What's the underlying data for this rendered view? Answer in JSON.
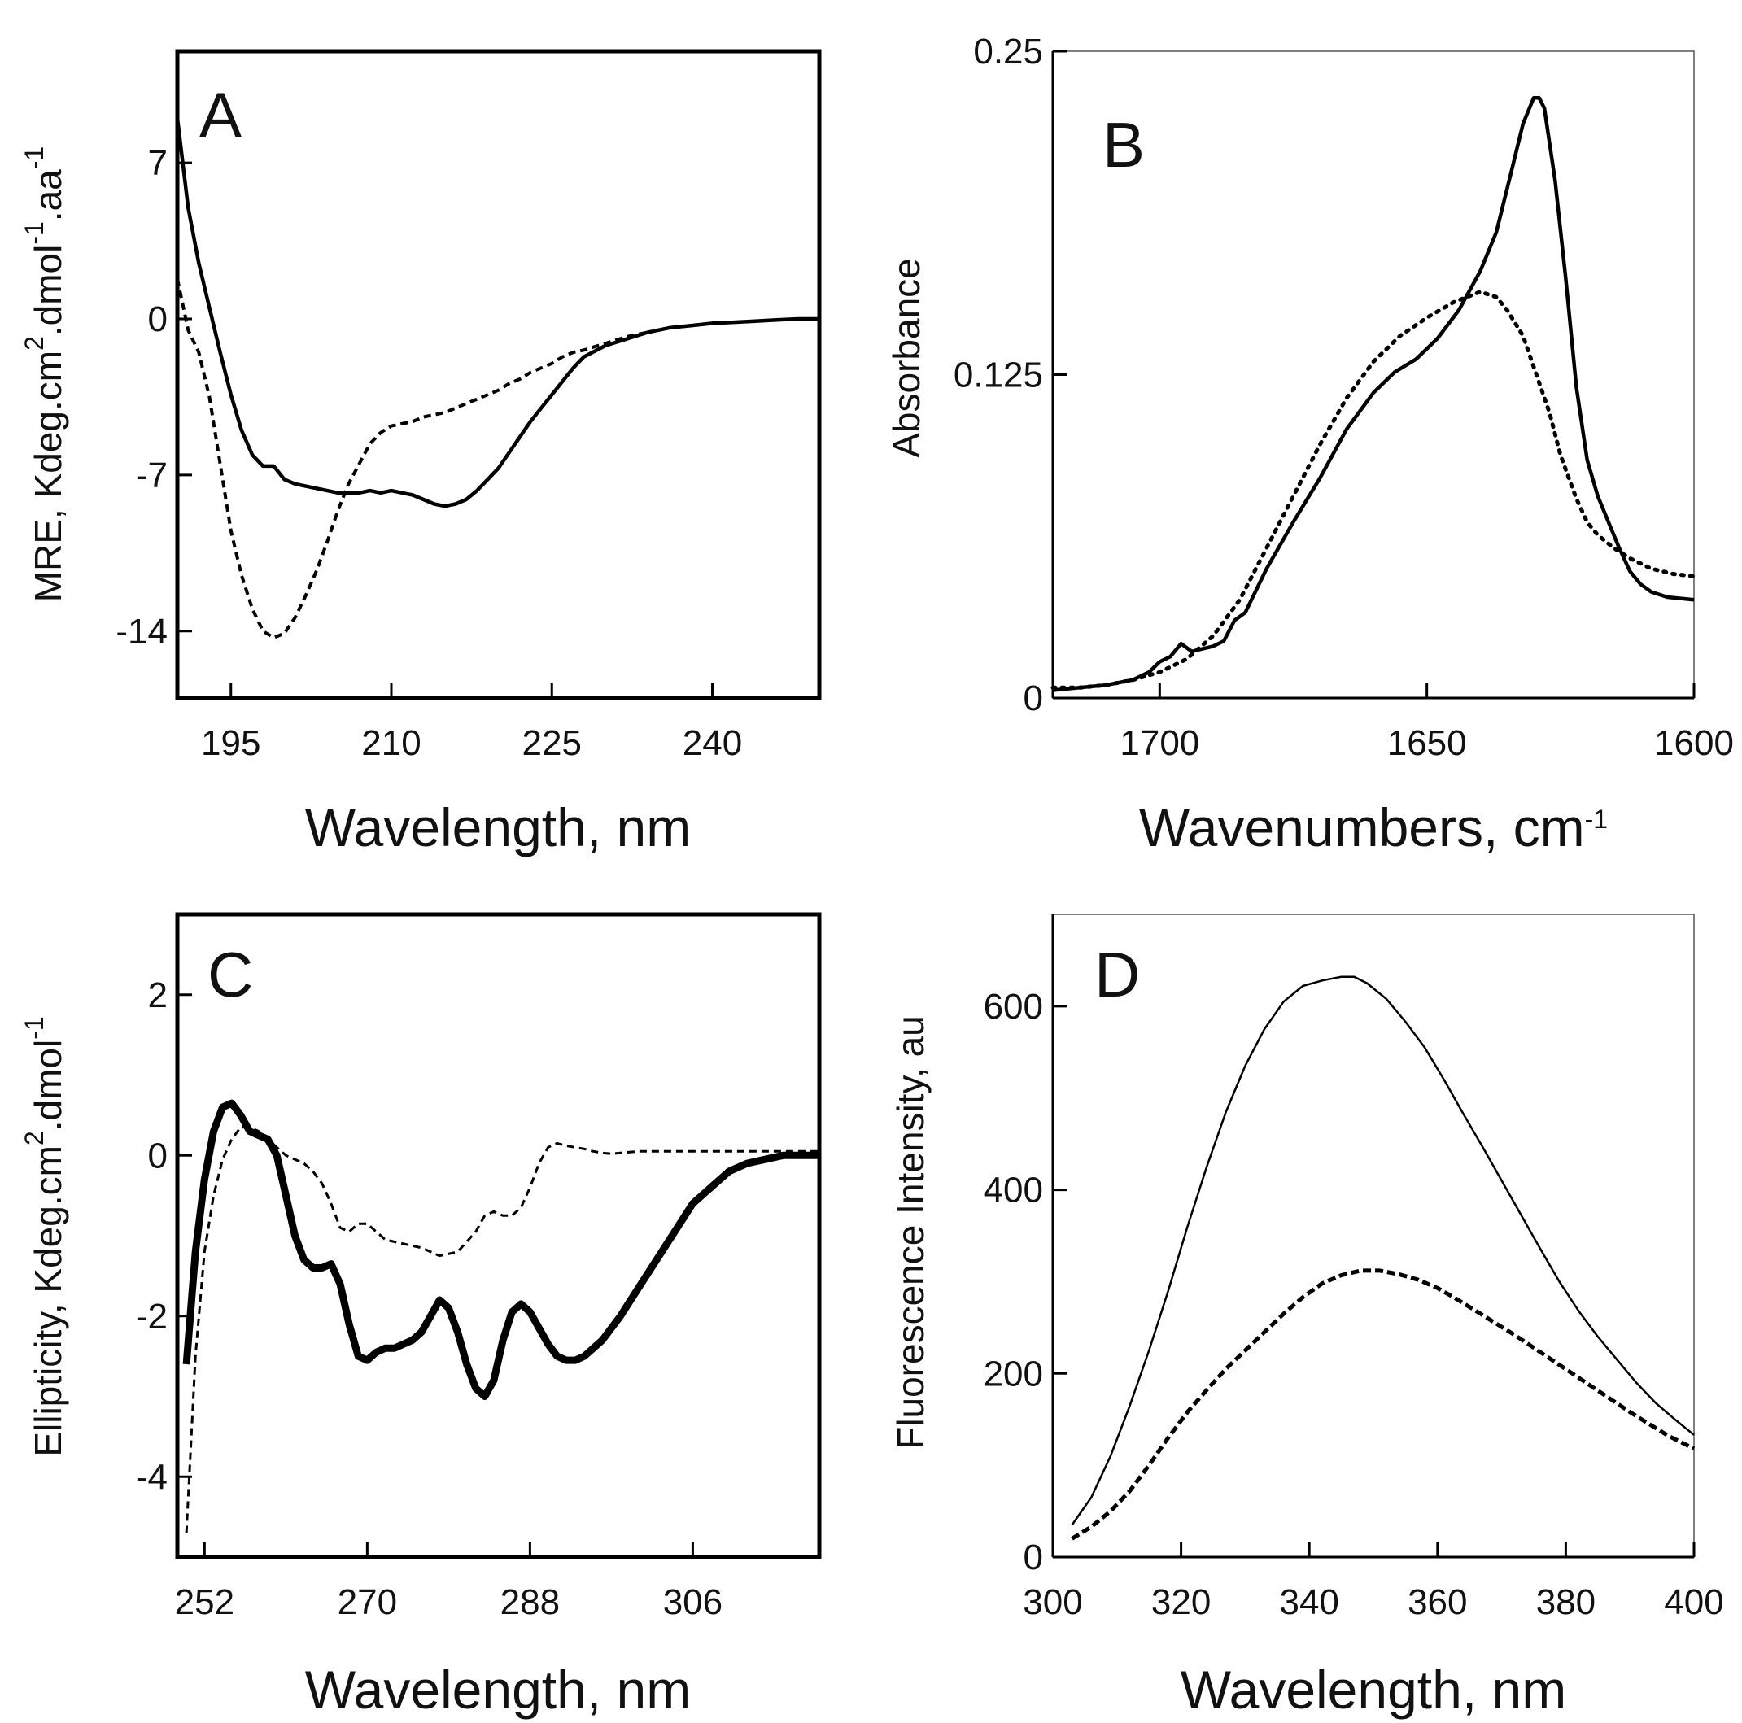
{
  "chart_data": [
    {
      "panel": "A",
      "type": "line",
      "title": "",
      "xlabel": "Wavelength, nm",
      "ylabel": "MRE, Kdeg.cm2.dmol-1.aa-1",
      "ylabel_parts": {
        "a": "MRE, Kdeg.cm",
        "sup1": "2",
        "b": ".dmol",
        "sup2": "-1",
        "c": ".aa",
        "sup3": "-1"
      },
      "xlim": [
        190,
        250
      ],
      "ylim": [
        -17,
        12
      ],
      "xticks": [
        195,
        210,
        225,
        240
      ],
      "yticks": [
        7,
        0,
        -7,
        -14
      ],
      "grid": false,
      "series": [
        {
          "name": "solid",
          "style": "solid",
          "x": [
            190,
            191,
            192,
            193,
            194,
            195,
            196,
            197,
            198,
            199,
            200,
            201,
            202,
            203,
            204,
            205,
            206,
            207,
            208,
            209,
            210,
            211,
            212,
            213,
            214,
            215,
            216,
            217,
            218,
            219,
            220,
            221,
            222,
            223,
            224,
            225,
            226,
            227,
            228,
            230,
            232,
            234,
            236,
            238,
            240,
            242,
            244,
            246,
            248,
            250
          ],
          "y": [
            9.0,
            5.0,
            2.5,
            0.5,
            -1.5,
            -3.4,
            -5.0,
            -6.1,
            -6.6,
            -6.6,
            -7.2,
            -7.4,
            -7.5,
            -7.6,
            -7.7,
            -7.8,
            -7.8,
            -7.8,
            -7.7,
            -7.8,
            -7.7,
            -7.8,
            -7.9,
            -8.1,
            -8.3,
            -8.4,
            -8.3,
            -8.1,
            -7.7,
            -7.2,
            -6.7,
            -6.0,
            -5.3,
            -4.6,
            -4.0,
            -3.4,
            -2.8,
            -2.2,
            -1.7,
            -1.2,
            -0.9,
            -0.6,
            -0.4,
            -0.3,
            -0.2,
            -0.15,
            -0.1,
            -0.05,
            0.0,
            0.0
          ]
        },
        {
          "name": "dashed",
          "style": "dashed",
          "x": [
            190,
            191,
            192,
            193,
            194,
            195,
            196,
            197,
            198,
            199,
            200,
            201,
            202,
            203,
            204,
            205,
            206,
            207,
            208,
            209,
            210,
            211,
            212,
            213,
            214,
            215,
            216,
            217,
            218,
            219,
            220,
            221,
            222,
            223,
            224,
            225,
            226,
            227,
            228,
            230,
            232,
            234,
            236,
            238,
            240,
            242,
            244,
            246,
            248,
            250
          ],
          "y": [
            1.8,
            -0.5,
            -1.5,
            -3.5,
            -6.5,
            -9.5,
            -11.5,
            -13.0,
            -14.0,
            -14.3,
            -14.1,
            -13.4,
            -12.4,
            -11.3,
            -10.0,
            -8.6,
            -7.4,
            -6.5,
            -5.6,
            -5.1,
            -4.8,
            -4.7,
            -4.6,
            -4.4,
            -4.3,
            -4.2,
            -4.0,
            -3.8,
            -3.6,
            -3.4,
            -3.2,
            -2.9,
            -2.7,
            -2.4,
            -2.2,
            -2.0,
            -1.7,
            -1.5,
            -1.4,
            -1.1,
            -0.8,
            -0.6,
            -0.4,
            -0.3,
            -0.2,
            -0.15,
            -0.1,
            -0.05,
            0.0,
            0.0
          ]
        }
      ]
    },
    {
      "panel": "B",
      "type": "line",
      "title": "",
      "xlabel": "Wavenumbers, cm-1",
      "xlabel_parts": {
        "a": "Wavenumbers, cm",
        "sup": "-1"
      },
      "ylabel": "Absorbance",
      "xlim": [
        1720,
        1600
      ],
      "ylim": [
        0,
        0.25
      ],
      "xticks": [
        1700,
        1650,
        1600
      ],
      "yticks": [
        0,
        0.125,
        0.25
      ],
      "ytick_labels": [
        "0",
        "0.125",
        "0.25"
      ],
      "grid": false,
      "series": [
        {
          "name": "solid",
          "style": "solid",
          "x": [
            1720,
            1715,
            1710,
            1705,
            1702,
            1700,
            1698,
            1696,
            1694,
            1692,
            1690,
            1688,
            1686,
            1684,
            1680,
            1675,
            1670,
            1665,
            1660,
            1656,
            1652,
            1648,
            1644,
            1640,
            1637,
            1634,
            1632,
            1630,
            1629,
            1628,
            1626,
            1624,
            1622,
            1620,
            1618,
            1616,
            1614,
            1612,
            1610,
            1608,
            1605,
            1600
          ],
          "y": [
            0.003,
            0.004,
            0.005,
            0.007,
            0.01,
            0.014,
            0.016,
            0.021,
            0.018,
            0.019,
            0.02,
            0.022,
            0.03,
            0.033,
            0.05,
            0.068,
            0.085,
            0.104,
            0.118,
            0.126,
            0.131,
            0.139,
            0.15,
            0.165,
            0.18,
            0.205,
            0.222,
            0.232,
            0.232,
            0.228,
            0.2,
            0.162,
            0.12,
            0.092,
            0.078,
            0.068,
            0.058,
            0.049,
            0.044,
            0.041,
            0.039,
            0.038
          ]
        },
        {
          "name": "dotted",
          "style": "dotted",
          "x": [
            1720,
            1715,
            1710,
            1705,
            1700,
            1695,
            1690,
            1685,
            1680,
            1675,
            1670,
            1665,
            1660,
            1655,
            1650,
            1645,
            1640,
            1637,
            1635,
            1632,
            1630,
            1627,
            1625,
            1622,
            1620,
            1618,
            1615,
            1612,
            1608,
            1604,
            1600
          ],
          "y": [
            0.004,
            0.004,
            0.005,
            0.007,
            0.01,
            0.015,
            0.024,
            0.038,
            0.058,
            0.078,
            0.098,
            0.116,
            0.13,
            0.14,
            0.147,
            0.153,
            0.157,
            0.155,
            0.15,
            0.14,
            0.128,
            0.11,
            0.094,
            0.077,
            0.068,
            0.063,
            0.058,
            0.054,
            0.05,
            0.048,
            0.047
          ]
        }
      ]
    },
    {
      "panel": "C",
      "type": "line",
      "title": "",
      "xlabel": "Wavelength, nm",
      "ylabel": "Ellipticity, Kdeg.cm2.dmol-1",
      "ylabel_parts": {
        "a": "Ellipticity, Kdeg.cm",
        "sup1": "2",
        "b": ".dmol",
        "sup2": "-1"
      },
      "xlim": [
        249,
        320
      ],
      "ylim": [
        -5,
        3
      ],
      "xticks": [
        252,
        270,
        288,
        306
      ],
      "yticks": [
        2,
        0,
        -2,
        -4
      ],
      "grid": false,
      "series": [
        {
          "name": "thick-solid",
          "style": "solid-thick",
          "x": [
            250,
            251,
            252,
            253,
            254,
            255,
            256,
            257,
            258,
            259,
            260,
            261,
            262,
            263,
            264,
            265,
            266,
            267,
            268,
            269,
            270,
            271,
            272,
            273,
            274,
            275,
            276,
            277,
            278,
            279,
            280,
            281,
            282,
            283,
            284,
            285,
            286,
            287,
            288,
            289,
            290,
            291,
            292,
            293,
            294,
            295,
            296,
            297,
            298,
            300,
            302,
            304,
            306,
            308,
            310,
            312,
            314,
            316,
            318,
            320
          ],
          "y": [
            -2.6,
            -1.2,
            -0.3,
            0.3,
            0.6,
            0.65,
            0.5,
            0.3,
            0.25,
            0.2,
            0.0,
            -0.5,
            -1.0,
            -1.3,
            -1.4,
            -1.4,
            -1.35,
            -1.6,
            -2.1,
            -2.5,
            -2.55,
            -2.45,
            -2.4,
            -2.4,
            -2.35,
            -2.3,
            -2.2,
            -2.0,
            -1.8,
            -1.9,
            -2.2,
            -2.6,
            -2.9,
            -3.0,
            -2.8,
            -2.3,
            -1.95,
            -1.85,
            -1.95,
            -2.15,
            -2.35,
            -2.5,
            -2.55,
            -2.55,
            -2.5,
            -2.4,
            -2.3,
            -2.15,
            -2.0,
            -1.65,
            -1.3,
            -0.95,
            -0.6,
            -0.4,
            -0.2,
            -0.1,
            -0.05,
            0.0,
            0.0,
            0.0
          ]
        },
        {
          "name": "dashed",
          "style": "dashed",
          "x": [
            250,
            251,
            252,
            253,
            254,
            255,
            256,
            257,
            258,
            259,
            260,
            261,
            262,
            263,
            264,
            265,
            266,
            267,
            268,
            269,
            270,
            271,
            272,
            274,
            276,
            278,
            280,
            282,
            283,
            284,
            285,
            286,
            287,
            288,
            289,
            290,
            291,
            292,
            293,
            294,
            295,
            296,
            297,
            298,
            300,
            302,
            304,
            306,
            308,
            310,
            312,
            314,
            316,
            318,
            320
          ],
          "y": [
            -4.7,
            -2.5,
            -1.2,
            -0.5,
            -0.05,
            0.2,
            0.35,
            0.35,
            0.3,
            0.2,
            0.1,
            0.0,
            -0.05,
            -0.1,
            -0.2,
            -0.35,
            -0.6,
            -0.9,
            -0.95,
            -0.85,
            -0.85,
            -0.95,
            -1.05,
            -1.1,
            -1.15,
            -1.25,
            -1.2,
            -0.95,
            -0.75,
            -0.7,
            -0.75,
            -0.75,
            -0.65,
            -0.4,
            -0.1,
            0.1,
            0.15,
            0.12,
            0.1,
            0.08,
            0.05,
            0.03,
            0.02,
            0.03,
            0.05,
            0.05,
            0.05,
            0.05,
            0.05,
            0.05,
            0.05,
            0.05,
            0.05,
            0.05,
            0.05
          ]
        }
      ]
    },
    {
      "panel": "D",
      "type": "line",
      "title": "",
      "xlabel": "Wavelength, nm",
      "ylabel": "Fluorescence Intensity, au",
      "xlim": [
        300,
        400
      ],
      "ylim": [
        0,
        700
      ],
      "xticks": [
        300,
        320,
        340,
        360,
        380,
        400
      ],
      "yticks": [
        0,
        200,
        400,
        600
      ],
      "grid": false,
      "series": [
        {
          "name": "solid",
          "style": "solid-thin",
          "x": [
            303,
            306,
            309,
            312,
            315,
            318,
            321,
            324,
            327,
            330,
            333,
            336,
            339,
            342,
            345,
            347,
            349,
            352,
            355,
            358,
            361,
            364,
            367,
            370,
            373,
            376,
            379,
            382,
            385,
            388,
            391,
            394,
            397,
            400
          ],
          "y": [
            35,
            65,
            110,
            165,
            225,
            290,
            360,
            425,
            485,
            535,
            575,
            605,
            622,
            628,
            632,
            632,
            625,
            608,
            583,
            555,
            520,
            483,
            447,
            410,
            373,
            336,
            300,
            268,
            240,
            215,
            190,
            168,
            150,
            133
          ]
        },
        {
          "name": "dashed",
          "style": "dashed",
          "x": [
            303,
            306,
            309,
            312,
            315,
            318,
            321,
            324,
            327,
            330,
            333,
            336,
            339,
            342,
            345,
            348,
            351,
            354,
            357,
            360,
            363,
            366,
            369,
            372,
            375,
            378,
            381,
            384,
            387,
            390,
            393,
            396,
            400
          ],
          "y": [
            20,
            33,
            50,
            72,
            100,
            130,
            158,
            182,
            205,
            225,
            245,
            265,
            283,
            298,
            307,
            312,
            312,
            308,
            302,
            293,
            281,
            268,
            255,
            242,
            228,
            214,
            200,
            186,
            172,
            158,
            145,
            132,
            118
          ]
        }
      ]
    }
  ]
}
